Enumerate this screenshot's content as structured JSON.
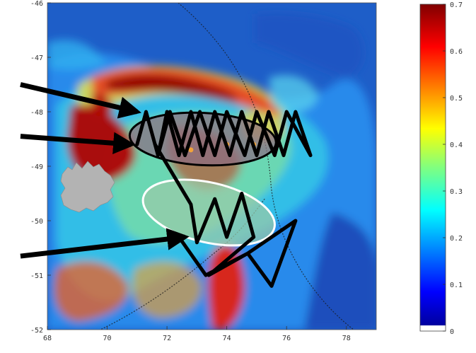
{
  "chart_data": {
    "type": "heatmap",
    "title": "",
    "xlabel": "",
    "ylabel": "",
    "xlim": [
      68,
      79
    ],
    "ylim": [
      -52,
      -46
    ],
    "x_ticks": [
      "68",
      "70",
      "72",
      "74",
      "76",
      "78"
    ],
    "y_ticks": [
      "-46",
      "-47",
      "-48",
      "-49",
      "-50",
      "-51",
      "-52"
    ],
    "colorbar": {
      "range": [
        0,
        0.7
      ],
      "ticks": [
        "0.7",
        "0.6",
        "0.5",
        "0.4",
        "0.3",
        "0.2",
        "0.1",
        "0"
      ],
      "colormap": "jet",
      "no_data_color": "#ffffff"
    },
    "land_color": "#b3b3b3",
    "regions": [
      {
        "shape": "ellipse",
        "center": [
          73.2,
          -48.5
        ],
        "radii": [
          2.45,
          0.48
        ],
        "fill": "#8c6c82",
        "outline": "#000000"
      },
      {
        "shape": "ellipse",
        "center": [
          73.4,
          -49.85
        ],
        "radii": [
          2.25,
          0.55
        ],
        "fill": "#9acba8",
        "outline": "#ffffff"
      }
    ],
    "stations": [
      [
        72.8,
        -48.7
      ],
      [
        74.0,
        -48.6
      ],
      [
        74.9,
        -48.6
      ]
    ],
    "station_color": "#f2a33a",
    "tracks": [
      [
        [
          71.0,
          -48.6
        ],
        [
          71.3,
          -48.0
        ],
        [
          71.7,
          -48.8
        ],
        [
          72.0,
          -48.0
        ],
        [
          72.4,
          -48.8
        ],
        [
          72.8,
          -48.0
        ],
        [
          73.2,
          -48.8
        ],
        [
          73.6,
          -48.0
        ],
        [
          74.1,
          -48.8
        ],
        [
          74.5,
          -48.0
        ],
        [
          75.0,
          -48.8
        ],
        [
          75.4,
          -48.0
        ],
        [
          75.9,
          -48.8
        ],
        [
          76.3,
          -48.0
        ],
        [
          76.8,
          -48.8
        ],
        [
          76.0,
          -48.0
        ],
        [
          75.6,
          -48.8
        ],
        [
          75.0,
          -48.0
        ],
        [
          74.6,
          -48.8
        ],
        [
          74.0,
          -48.0
        ],
        [
          73.6,
          -48.8
        ],
        [
          73.1,
          -48.0
        ],
        [
          72.6,
          -48.8
        ],
        [
          72.1,
          -48.0
        ],
        [
          71.7,
          -48.8
        ],
        [
          71.3,
          -48.0
        ],
        [
          71.0,
          -48.6
        ]
      ],
      [
        [
          71.6,
          -48.6
        ],
        [
          72.8,
          -49.7
        ],
        [
          73.0,
          -50.4
        ],
        [
          73.6,
          -49.6
        ],
        [
          74.0,
          -50.3
        ],
        [
          74.5,
          -49.5
        ],
        [
          74.9,
          -50.3
        ],
        [
          73.4,
          -51.0
        ],
        [
          74.7,
          -50.6
        ],
        [
          75.5,
          -51.2
        ],
        [
          76.3,
          -50.0
        ],
        [
          74.7,
          -50.6
        ],
        [
          73.3,
          -51.0
        ],
        [
          72.4,
          -50.3
        ]
      ]
    ],
    "arrows": [
      {
        "from": [
          67.1,
          -47.5
        ],
        "to": [
          71.0,
          -48.0
        ]
      },
      {
        "from": [
          67.1,
          -48.45
        ],
        "to": [
          70.8,
          -48.6
        ]
      },
      {
        "from": [
          67.1,
          -50.65
        ],
        "to": [
          72.6,
          -50.3
        ]
      }
    ],
    "grid": false
  }
}
